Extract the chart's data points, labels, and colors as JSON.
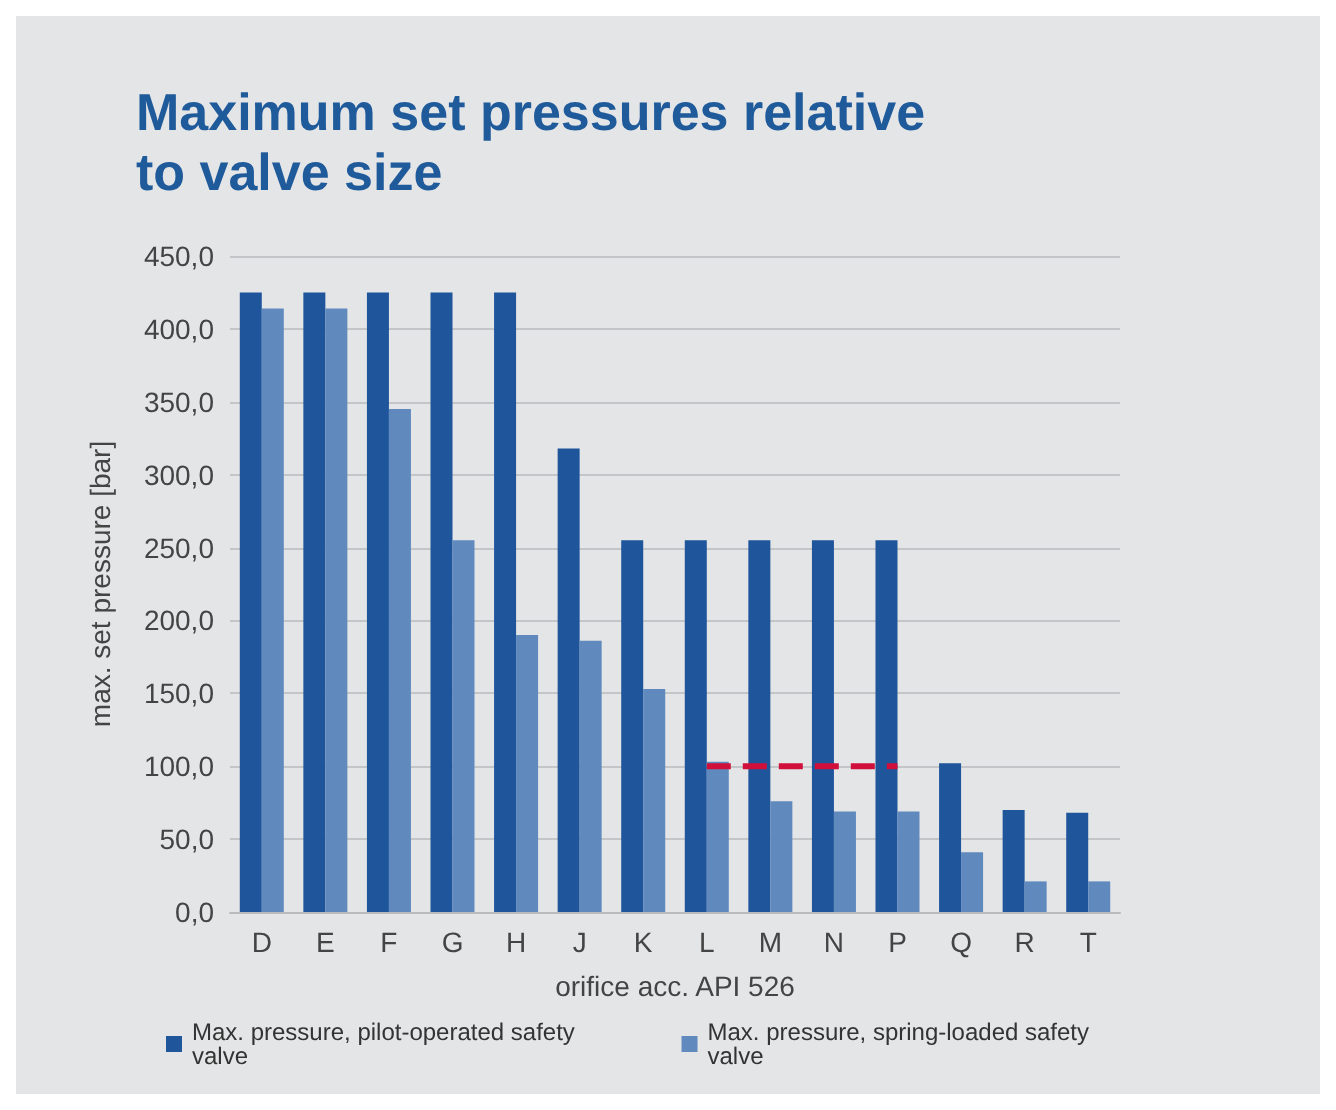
{
  "chart_data": {
    "type": "bar",
    "title": "Maximum set pressures relative\nto valve size",
    "xlabel": "orifice acc. API 526",
    "ylabel": "max. set pressure [bar]",
    "categories": [
      "D",
      "E",
      "F",
      "G",
      "H",
      "J",
      "K",
      "L",
      "M",
      "N",
      "P",
      "Q",
      "R",
      "T"
    ],
    "series": [
      {
        "name": "Max. pressure, pilot-operated safety valve",
        "color": "#1f559b",
        "values": [
          425,
          425,
          425,
          425,
          425,
          318,
          255,
          255,
          255,
          255,
          255,
          102,
          70,
          68
        ]
      },
      {
        "name": "Max. pressure, spring-loaded safety valve",
        "color": "#6089bd",
        "values": [
          414,
          414,
          345,
          255,
          190,
          186,
          153,
          103,
          76,
          69,
          69,
          41,
          21,
          21
        ]
      },
      {
        "type": "line",
        "color": "#d0103a",
        "line_style": "dashed",
        "marker": "none",
        "values": [
          null,
          null,
          null,
          null,
          null,
          null,
          null,
          100,
          100,
          100,
          100,
          null,
          null,
          null
        ]
      }
    ],
    "ylim": [
      0,
      450
    ],
    "yticks": [
      {
        "value": 0,
        "label": "0,0"
      },
      {
        "value": 50,
        "label": "50,0"
      },
      {
        "value": 100,
        "label": "100,0"
      },
      {
        "value": 150,
        "label": "150,0"
      },
      {
        "value": 200,
        "label": "200,0"
      },
      {
        "value": 250,
        "label": "250,0"
      },
      {
        "value": 300,
        "label": "300,0"
      },
      {
        "value": 350,
        "label": "350,0"
      },
      {
        "value": 400,
        "label": "400,0"
      },
      {
        "value": 450,
        "label": "450,0"
      }
    ],
    "grid": "y",
    "legend": "bottom"
  }
}
